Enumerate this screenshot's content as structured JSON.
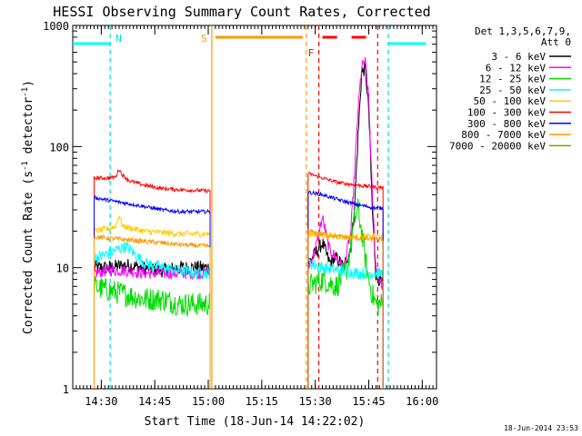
{
  "chart_data": {
    "type": "line",
    "title": "HESSI Observing Summary Count Rates, Corrected",
    "xlabel": "Start Time (18-Jun-14 14:22:02)",
    "ylabel_main": "Corrected Count Rate (s",
    "ylabel_sup1": "-1",
    "ylabel_mid": " detector",
    "ylabel_sup2": "-1",
    "ylabel_end": ")",
    "y_scale": "log",
    "ylim": [
      1,
      1000
    ],
    "xlim_minutes_after_1422": [
      0,
      102
    ],
    "x_ticks": [
      {
        "label": "14:30",
        "min": 8
      },
      {
        "label": "14:45",
        "min": 23
      },
      {
        "label": "15:00",
        "min": 38
      },
      {
        "label": "15:15",
        "min": 53
      },
      {
        "label": "15:30",
        "min": 68
      },
      {
        "label": "15:45",
        "min": 83
      },
      {
        "label": "16:00",
        "min": 98
      }
    ],
    "y_ticks": [
      {
        "label": "1",
        "value": 1
      },
      {
        "label": "10",
        "value": 10
      },
      {
        "label": "100",
        "value": 100
      },
      {
        "label": "1000",
        "value": 1000
      }
    ],
    "legend_header": [
      "Det 1,3,5,6,7,9,",
      "Att 0"
    ],
    "legend_placement": "right",
    "series": [
      {
        "name": "3 - 6 keV",
        "color": "#000000",
        "segments": [
          {
            "x": [
              6,
              10,
              15,
              20,
              25,
              30,
              35,
              38.5
            ],
            "y": [
              10,
              10,
              10.5,
              10,
              9.5,
              10,
              10,
              10
            ],
            "noise": 0.12
          },
          {
            "x": [
              66,
              68,
              70,
              72,
              74,
              76,
              78,
              79,
              80,
              81,
              82,
              83,
              84,
              85,
              86,
              87
            ],
            "y": [
              11,
              13,
              16,
              11,
              12,
              10,
              15,
              30,
              120,
              400,
              450,
              200,
              30,
              9,
              8,
              7
            ],
            "noise": 0.12
          }
        ]
      },
      {
        "name": "6 - 12 keV",
        "color": "#ff00ff",
        "segments": [
          {
            "x": [
              6,
              10,
              15,
              20,
              25,
              30,
              35,
              38.5
            ],
            "y": [
              9,
              9.5,
              9.5,
              9,
              9,
              9,
              9,
              9
            ],
            "noise": 0.1
          },
          {
            "x": [
              66,
              68,
              70,
              72,
              74,
              76,
              78,
              79,
              80,
              81,
              82,
              83,
              84,
              85,
              86,
              87
            ],
            "y": [
              10,
              14,
              26,
              14,
              12,
              10,
              20,
              60,
              200,
              450,
              500,
              250,
              40,
              10,
              8,
              7
            ],
            "noise": 0.1
          }
        ]
      },
      {
        "name": "12 - 25 keV",
        "color": "#00dd00",
        "segments": [
          {
            "x": [
              6,
              10,
              15,
              20,
              25,
              30,
              35,
              38.5
            ],
            "y": [
              7,
              6.5,
              6,
              5.5,
              5.5,
              5,
              5,
              5
            ],
            "noise": 0.2
          },
          {
            "x": [
              66,
              70,
              74,
              77,
              79,
              80,
              81,
              82,
              83,
              84,
              85,
              87
            ],
            "y": [
              7,
              8,
              7,
              10,
              25,
              30,
              20,
              12,
              8,
              6,
              5,
              5
            ],
            "noise": 0.2
          }
        ]
      },
      {
        "name": "25 - 50 keV",
        "color": "#00ffff",
        "segments": [
          {
            "x": [
              6,
              10,
              12,
              15,
              20,
              25,
              30,
              35,
              38.5
            ],
            "y": [
              12,
              13,
              14,
              15,
              11,
              10,
              9.5,
              9,
              9
            ],
            "noise": 0.1
          },
          {
            "x": [
              66,
              70,
              75,
              80,
              85,
              87
            ],
            "y": [
              11,
              10,
              9.5,
              9,
              9,
              9
            ],
            "noise": 0.1
          }
        ]
      },
      {
        "name": "50 - 100 keV",
        "color": "#ffcc00",
        "segments": [
          {
            "x": [
              6,
              10,
              12,
              13,
              14,
              20,
              30,
              38.5
            ],
            "y": [
              20,
              21,
              22,
              27,
              22,
              20,
              19,
              19
            ],
            "noise": 0.05
          },
          {
            "x": [
              66,
              75,
              87
            ],
            "y": [
              19,
              18,
              18
            ],
            "noise": 0.05
          }
        ]
      },
      {
        "name": "100 - 300 keV",
        "color": "#ff0000",
        "segments": [
          {
            "x": [
              6,
              10,
              12,
              13,
              14,
              16,
              20,
              25,
              30,
              38.5
            ],
            "y": [
              55,
              55,
              56,
              65,
              58,
              52,
              48,
              45,
              44,
              43
            ],
            "noise": 0.03
          },
          {
            "x": [
              66,
              70,
              75,
              80,
              85,
              87
            ],
            "y": [
              60,
              55,
              50,
              48,
              46,
              46
            ],
            "noise": 0.03
          }
        ]
      },
      {
        "name": "300 - 800 keV",
        "color": "#0000ff",
        "segments": [
          {
            "x": [
              6,
              10,
              15,
              20,
              25,
              30,
              38.5
            ],
            "y": [
              38,
              36,
              34,
              32,
              30,
              29,
              29
            ],
            "noise": 0.03
          },
          {
            "x": [
              66,
              70,
              75,
              80,
              85,
              87
            ],
            "y": [
              42,
              40,
              36,
              33,
              31,
              31
            ],
            "noise": 0.03
          }
        ]
      },
      {
        "name": "800 - 7000 keV",
        "color": "#ff9900",
        "segments": [
          {
            "x": [
              6,
              10,
              15,
              20,
              25,
              30,
              38.5
            ],
            "y": [
              18,
              17.5,
              17,
              16.5,
              16,
              15.5,
              15
            ],
            "noise": 0.04
          },
          {
            "x": [
              66,
              70,
              75,
              80,
              85,
              87
            ],
            "y": [
              20,
              19,
              18,
              17.5,
              17,
              17
            ],
            "noise": 0.04
          }
        ]
      },
      {
        "name": "7000 - 20000 keV",
        "color": "#999900",
        "segments": []
      }
    ],
    "attenuator_bars": [
      {
        "from": 0,
        "to": 10.5
      },
      {
        "from": 88.5,
        "to": 99
      }
    ],
    "markers": [
      {
        "label": "N",
        "color": "#00dddd",
        "start": 10.5,
        "end": 88.5,
        "bar_from": null,
        "bar_to": null,
        "dashed": false
      },
      {
        "label": "S",
        "color": "#ff9900",
        "start": 39,
        "end": 65.5,
        "bar_from": 39,
        "bar_to": 65.5,
        "dashed": false
      },
      {
        "label": "F",
        "color": "#ff0000",
        "start": 69,
        "end": 85.5,
        "bar_from": 69,
        "bar_to": 85.5,
        "dashed": true
      }
    ],
    "footer_timestamp": "18-Jun-2014 23:53"
  }
}
